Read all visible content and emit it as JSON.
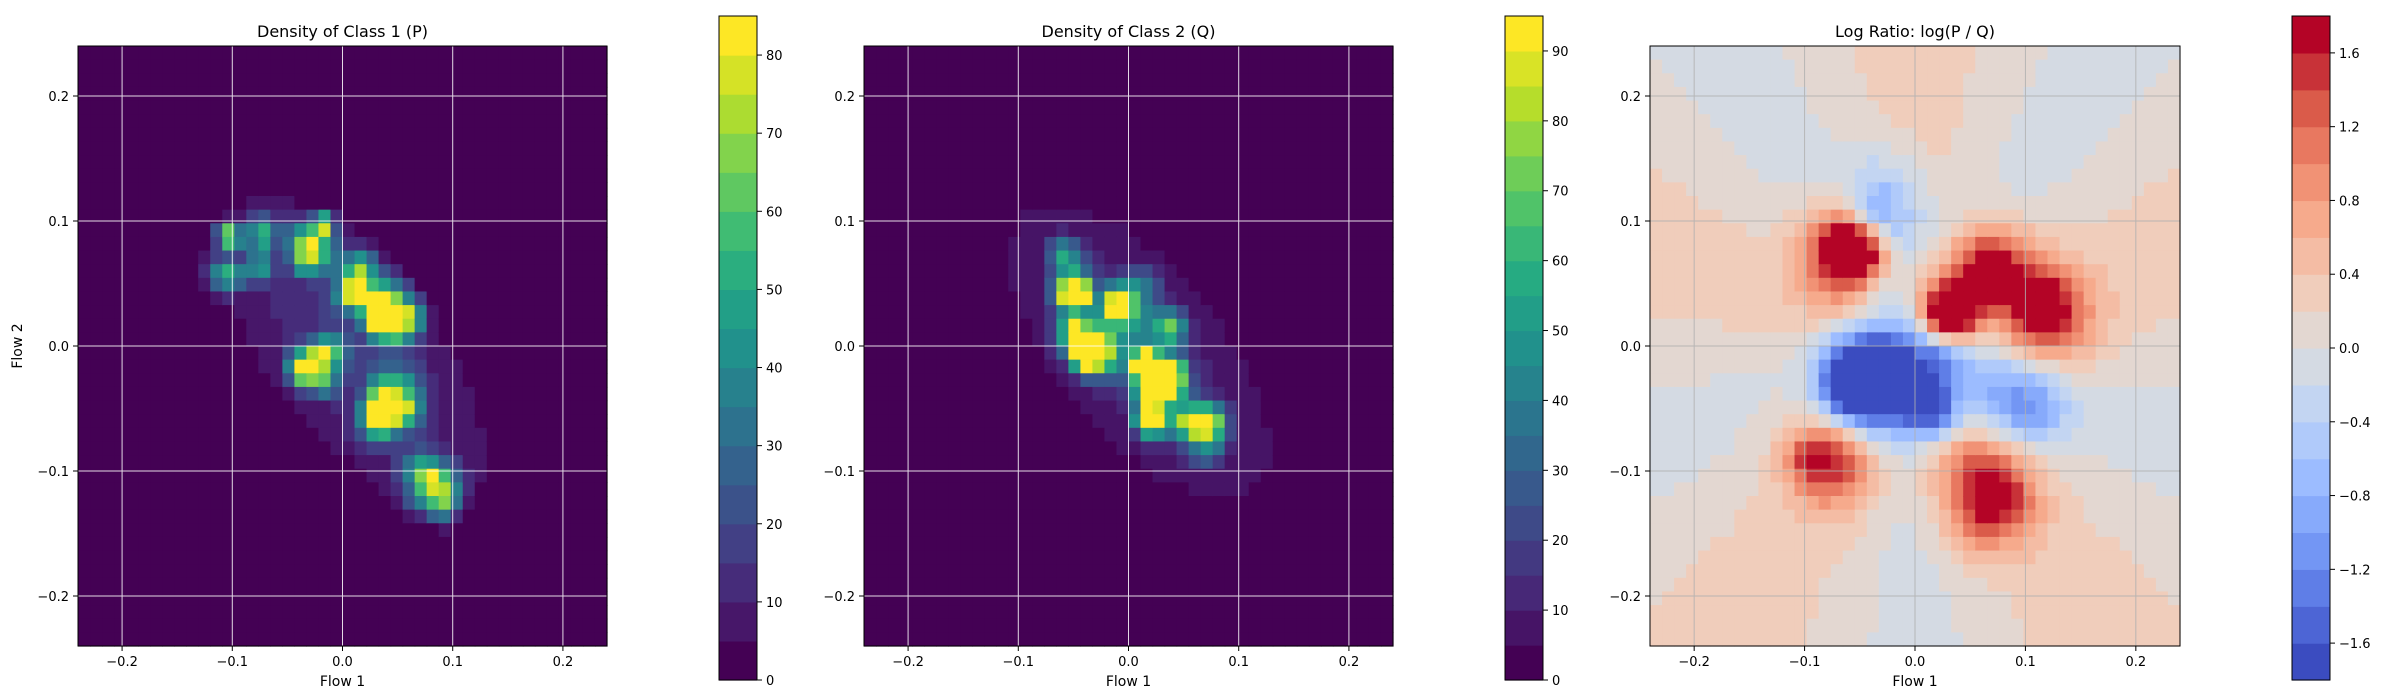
{
  "chart_data": [
    {
      "type": "heatmap",
      "title": "Density of Class 1 (P)",
      "xlabel": "Flow 1",
      "ylabel": "Flow 2",
      "xlim": [
        -0.24,
        0.24
      ],
      "ylim": [
        -0.24,
        0.24
      ],
      "xticks": [
        -0.2,
        -0.1,
        0.0,
        0.1,
        0.2
      ],
      "yticks": [
        -0.2,
        -0.1,
        0.0,
        0.1,
        0.2
      ],
      "xtick_labels": [
        "−0.2",
        "−0.1",
        "0.0",
        "0.1",
        "0.2"
      ],
      "ytick_labels": [
        "−0.2",
        "−0.1",
        "0.0",
        "0.1",
        "0.2"
      ],
      "grid": true,
      "colormap": "viridis",
      "colorbar": {
        "range": [
          0,
          85
        ],
        "ticks": [
          0,
          10,
          20,
          30,
          40,
          50,
          60,
          70,
          80
        ],
        "tick_labels": [
          "0",
          "10",
          "20",
          "30",
          "40",
          "50",
          "60",
          "70",
          "80"
        ],
        "levels": 17
      },
      "blobs": [
        {
          "x": -0.09,
          "y": 0.075,
          "peak": 55
        },
        {
          "x": -0.035,
          "y": 0.08,
          "peak": 55
        },
        {
          "x": 0.045,
          "y": 0.03,
          "peak": 75
        },
        {
          "x": -0.02,
          "y": -0.015,
          "peak": 50
        },
        {
          "x": 0.045,
          "y": -0.04,
          "peak": 60
        },
        {
          "x": 0.075,
          "y": -0.11,
          "peak": 50
        },
        {
          "x": 0.0,
          "y": 0.05,
          "peak": 40
        }
      ]
    },
    {
      "type": "heatmap",
      "title": "Density of Class 2 (Q)",
      "xlabel": "Flow 1",
      "ylabel": "",
      "xlim": [
        -0.24,
        0.24
      ],
      "ylim": [
        -0.24,
        0.24
      ],
      "xticks": [
        -0.2,
        -0.1,
        0.0,
        0.1,
        0.2
      ],
      "yticks": [
        -0.2,
        -0.1,
        0.0,
        0.1,
        0.2
      ],
      "xtick_labels": [
        "−0.2",
        "−0.1",
        "0.0",
        "0.1",
        "0.2"
      ],
      "ytick_labels": [
        "−0.2",
        "−0.1",
        "0.0",
        "0.1",
        "0.2"
      ],
      "grid": true,
      "colormap": "viridis",
      "colorbar": {
        "range": [
          0,
          95
        ],
        "ticks": [
          0,
          10,
          20,
          30,
          40,
          50,
          60,
          70,
          80,
          90
        ],
        "tick_labels": [
          "0",
          "10",
          "20",
          "30",
          "40",
          "50",
          "60",
          "70",
          "80",
          "90"
        ],
        "levels": 19
      },
      "blobs": [
        {
          "x": -0.045,
          "y": 0.055,
          "peak": 60
        },
        {
          "x": -0.04,
          "y": -0.005,
          "peak": 70
        },
        {
          "x": 0.03,
          "y": 0.0,
          "peak": 85
        },
        {
          "x": 0.03,
          "y": -0.045,
          "peak": 80
        },
        {
          "x": 0.07,
          "y": -0.07,
          "peak": 50
        },
        {
          "x": -0.005,
          "y": 0.03,
          "peak": 45
        }
      ]
    },
    {
      "type": "heatmap",
      "title": "Log Ratio: log(P / Q)",
      "xlabel": "Flow 1",
      "ylabel": "",
      "xlim": [
        -0.24,
        0.24
      ],
      "ylim": [
        -0.24,
        0.24
      ],
      "xticks": [
        -0.2,
        -0.1,
        0.0,
        0.1,
        0.2
      ],
      "yticks": [
        -0.2,
        -0.1,
        0.0,
        0.1,
        0.2
      ],
      "xtick_labels": [
        "−0.2",
        "−0.1",
        "0.0",
        "0.1",
        "0.2"
      ],
      "ytick_labels": [
        "−0.2",
        "−0.1",
        "0.0",
        "0.1",
        "0.2"
      ],
      "grid": true,
      "colormap": "coolwarm",
      "colorbar": {
        "range": [
          -1.8,
          1.8
        ],
        "ticks": [
          -1.6,
          -1.2,
          -0.8,
          -0.4,
          0.0,
          0.4,
          0.8,
          1.2,
          1.6
        ],
        "tick_labels": [
          "−1.6",
          "−1.2",
          "−0.8",
          "−0.4",
          "0.0",
          "0.4",
          "0.8",
          "1.2",
          "1.6"
        ],
        "levels": 18
      },
      "features": [
        {
          "x": 0.05,
          "y": 0.04,
          "value": 1.6
        },
        {
          "x": -0.06,
          "y": 0.08,
          "value": 1.0
        },
        {
          "x": 0.12,
          "y": 0.02,
          "value": 0.8
        },
        {
          "x": -0.05,
          "y": -0.015,
          "value": -1.6
        },
        {
          "x": 0.02,
          "y": -0.03,
          "value": -1.0
        },
        {
          "x": 0.1,
          "y": -0.04,
          "value": -0.6
        },
        {
          "x": -0.03,
          "y": 0.1,
          "value": -0.5
        },
        {
          "x": 0.06,
          "y": -0.12,
          "value": 0.8
        },
        {
          "x": -0.09,
          "y": -0.08,
          "value": 0.6
        }
      ]
    }
  ]
}
